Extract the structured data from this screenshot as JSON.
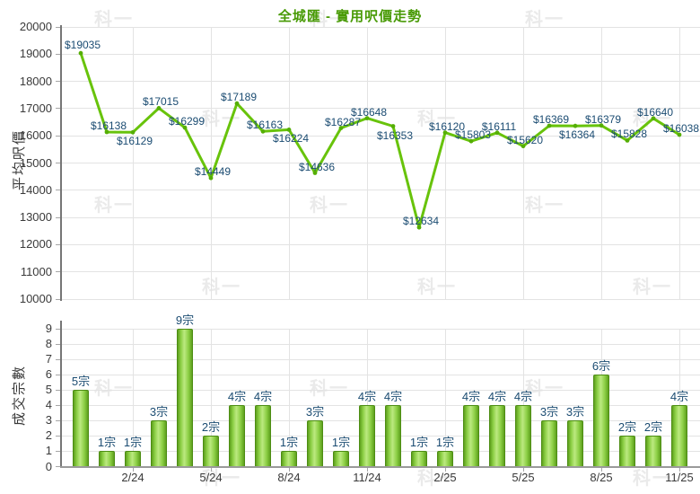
{
  "title": "全城匯 - 實用呎價走勢",
  "watermark_text": "科一",
  "colors": {
    "title": "#489a05",
    "line": "#68c30b",
    "marker": "#55ae05",
    "point_label": "#1b4c72",
    "bar_dark": "#5ea01d",
    "bar_mid": "#8ccf45",
    "bar_light": "#bce980",
    "bar_border": "#4d8d14",
    "grid": "#e3e3e3",
    "axis": "#767676",
    "axis_light": "#a6a6a6",
    "tick_text": "#3a3a3a",
    "axis_title_text": "#3a3a3a",
    "watermark": "#eaeaea"
  },
  "chart_data": [
    {
      "type": "line",
      "title": "全城匯 - 實用呎價走勢",
      "ylabel": "平均呎價",
      "ylim": [
        10000,
        20000
      ],
      "ytick_step": 1000,
      "grid": true,
      "x_tick_labels": [
        "2/24",
        "5/24",
        "8/24",
        "11/24",
        "2/25",
        "5/25",
        "8/25",
        "11/25"
      ],
      "x_tick_indices": [
        2,
        5,
        8,
        11,
        14,
        17,
        20,
        23
      ],
      "values": [
        19035,
        16138,
        16129,
        17015,
        16299,
        14449,
        17189,
        16163,
        16224,
        14636,
        16287,
        16648,
        16353,
        12634,
        16120,
        15803,
        16111,
        15620,
        16369,
        16364,
        16379,
        15828,
        16640,
        16038
      ],
      "point_labels": [
        "$19035",
        "$16138",
        "$16129",
        "$17015",
        "$16299",
        "$14449",
        "$17189",
        "$16163",
        "$16224",
        "$14636",
        "$16287",
        "$16648",
        "$16353",
        "$12634",
        "$16120",
        "$15803",
        "$16111",
        "$15620",
        "$16369",
        "$16364",
        "$16379",
        "$15828",
        "$16640",
        "$16038"
      ],
      "label_side": [
        "above",
        "above",
        "below",
        "above",
        "above",
        "above",
        "above",
        "above",
        "below",
        "above",
        "above",
        "above",
        "below",
        "above",
        "above",
        "above",
        "above",
        "above",
        "above",
        "below",
        "above",
        "above",
        "above",
        "above"
      ]
    },
    {
      "type": "bar",
      "ylabel": "成交宗數",
      "ylim": [
        0,
        9
      ],
      "ytick_step": 1,
      "grid": true,
      "x_tick_labels": [
        "2/24",
        "5/24",
        "8/24",
        "11/24",
        "2/25",
        "5/25",
        "8/25",
        "11/25"
      ],
      "x_tick_indices": [
        2,
        5,
        8,
        11,
        14,
        17,
        20,
        23
      ],
      "values": [
        5,
        1,
        1,
        3,
        9,
        2,
        4,
        4,
        1,
        3,
        1,
        4,
        4,
        1,
        1,
        4,
        4,
        4,
        3,
        3,
        6,
        2,
        2,
        4
      ],
      "bar_labels": [
        "5宗",
        "1宗",
        "1宗",
        "3宗",
        "9宗",
        "2宗",
        "4宗",
        "4宗",
        "1宗",
        "3宗",
        "1宗",
        "4宗",
        "4宗",
        "1宗",
        "1宗",
        "4宗",
        "4宗",
        "4宗",
        "3宗",
        "3宗",
        "6宗",
        "2宗",
        "2宗",
        "4宗"
      ]
    }
  ]
}
